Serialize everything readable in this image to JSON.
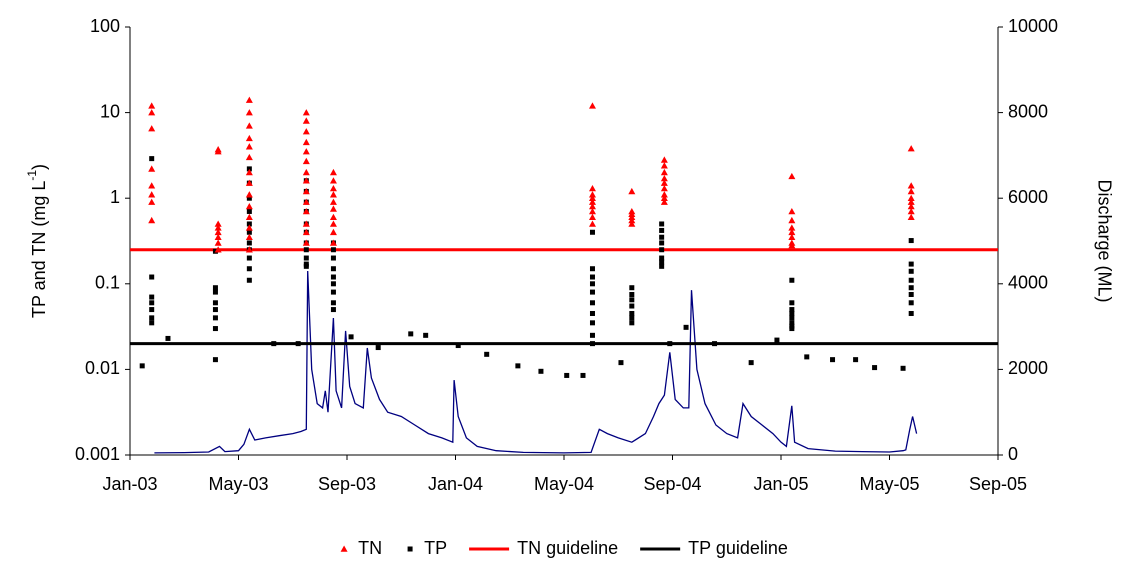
{
  "chart_data": {
    "type": "scatter",
    "ylog": true,
    "grid": false,
    "legend": "bottom",
    "ylabel": [
      "TP and TN (mg L",
      "-1",
      ")"
    ],
    "y2label": "Discharge (ML)",
    "xlim": [
      0,
      32
    ],
    "xticks": [
      {
        "value": 0,
        "label": "Jan-03"
      },
      {
        "value": 4,
        "label": "May-03"
      },
      {
        "value": 8,
        "label": "Sep-03"
      },
      {
        "value": 12,
        "label": "Jan-04"
      },
      {
        "value": 16,
        "label": "May-04"
      },
      {
        "value": 20,
        "label": "Sep-04"
      },
      {
        "value": 24,
        "label": "Jan-05"
      },
      {
        "value": 28,
        "label": "May-05"
      },
      {
        "value": 32,
        "label": "Sep-05"
      }
    ],
    "ylim": [
      0.001,
      100
    ],
    "yticks": [
      0.001,
      0.01,
      0.1,
      1,
      10,
      100
    ],
    "y2lim": [
      0,
      10000
    ],
    "y2ticks": [
      0,
      2000,
      4000,
      6000,
      8000,
      10000
    ],
    "series": [
      {
        "name": "TN",
        "color": "#ff0000",
        "marker": "triangle",
        "x": [
          0.8,
          0.8,
          0.8,
          0.8,
          0.8,
          0.8,
          0.8,
          0.8,
          3.25,
          3.25,
          3.25,
          3.25,
          3.25,
          3.25,
          3.25,
          3.25,
          4.4,
          4.4,
          4.4,
          4.4,
          4.4,
          4.4,
          4.4,
          4.4,
          4.4,
          4.4,
          4.4,
          4.4,
          4.4,
          4.4,
          6.5,
          6.5,
          6.5,
          6.5,
          6.5,
          6.5,
          6.5,
          6.5,
          6.5,
          6.5,
          6.5,
          6.5,
          6.5,
          6.5,
          7.5,
          7.5,
          7.5,
          7.5,
          7.5,
          7.5,
          7.5,
          7.5,
          7.5,
          7.5,
          17.05,
          17.05,
          17.05,
          17.05,
          17.05,
          17.05,
          17.05,
          17.05,
          17.05,
          18.5,
          18.5,
          18.5,
          18.5,
          18.5,
          18.5,
          19.7,
          19.7,
          19.7,
          19.7,
          19.7,
          19.7,
          19.7,
          19.7,
          19.7,
          24.4,
          24.4,
          24.4,
          24.4,
          24.4,
          24.4,
          24.4,
          24.4,
          28.8,
          28.8,
          28.8,
          28.8,
          28.8,
          28.8,
          28.8,
          28.8
        ],
        "values": [
          12,
          10,
          6.5,
          2.2,
          1.4,
          1.1,
          0.9,
          0.55,
          3.7,
          3.5,
          0.5,
          0.45,
          0.4,
          0.35,
          0.3,
          0.25,
          14,
          10,
          7,
          5,
          4,
          3,
          2,
          1.5,
          1.1,
          0.8,
          0.6,
          0.45,
          0.35,
          0.25,
          10,
          8,
          6,
          4.5,
          3.5,
          2.7,
          2,
          1.6,
          1.2,
          0.9,
          0.7,
          0.5,
          0.4,
          0.3,
          2,
          1.6,
          1.3,
          1.1,
          0.9,
          0.75,
          0.6,
          0.5,
          0.4,
          0.3,
          12,
          1.3,
          1.1,
          1.0,
          0.9,
          0.8,
          0.7,
          0.6,
          0.5,
          1.2,
          0.7,
          0.65,
          0.6,
          0.55,
          0.5,
          2.8,
          2.4,
          2,
          1.7,
          1.5,
          1.3,
          1.1,
          1.0,
          0.9,
          1.8,
          0.7,
          0.55,
          0.45,
          0.4,
          0.35,
          0.3,
          0.28,
          3.8,
          1.4,
          1.2,
          1.0,
          0.9,
          0.8,
          0.7,
          0.6
        ]
      },
      {
        "name": "TP",
        "color": "#000000",
        "marker": "square",
        "x": [
          0.45,
          0.8,
          0.8,
          0.8,
          0.8,
          0.8,
          0.8,
          0.8,
          1.4,
          3.15,
          3.15,
          3.15,
          3.15,
          3.15,
          3.15,
          3.15,
          3.15,
          4.4,
          4.4,
          4.4,
          4.4,
          4.4,
          4.4,
          4.4,
          4.4,
          4.4,
          4.4,
          4.4,
          5.3,
          6.2,
          6.5,
          6.5,
          6.5,
          6.5,
          6.5,
          6.5,
          6.5,
          6.5,
          6.5,
          6.5,
          6.5,
          7.5,
          7.5,
          7.5,
          7.5,
          7.5,
          7.5,
          7.5,
          7.5,
          7.5,
          8.15,
          9.15,
          10.35,
          10.9,
          12.1,
          13.15,
          14.3,
          15.15,
          16.1,
          16.7,
          17.05,
          17.05,
          17.05,
          17.05,
          17.05,
          17.05,
          17.05,
          17.05,
          17.05,
          17.05,
          18.1,
          18.5,
          18.5,
          18.5,
          18.5,
          18.5,
          18.5,
          18.5,
          19.6,
          19.6,
          19.6,
          19.6,
          19.6,
          19.6,
          19.6,
          19.6,
          19.9,
          20.5,
          21.55,
          22.9,
          23.85,
          24.4,
          24.4,
          24.4,
          24.4,
          24.4,
          24.4,
          24.4,
          24.4,
          24.95,
          25.9,
          26.75,
          27.45,
          28.5,
          28.8,
          28.8,
          28.8,
          28.8,
          28.8,
          28.8,
          28.8,
          28.8
        ],
        "values": [
          0.011,
          2.9,
          0.12,
          0.07,
          0.06,
          0.05,
          0.04,
          0.035,
          0.023,
          0.24,
          0.09,
          0.08,
          0.06,
          0.05,
          0.04,
          0.03,
          0.013,
          2.2,
          1.5,
          1.0,
          0.7,
          0.5,
          0.4,
          0.3,
          0.25,
          0.2,
          0.15,
          0.11,
          0.02,
          0.02,
          1.6,
          1.2,
          0.9,
          0.7,
          0.5,
          0.4,
          0.3,
          0.25,
          0.2,
          0.17,
          0.16,
          0.3,
          0.25,
          0.2,
          0.15,
          0.12,
          0.1,
          0.08,
          0.06,
          0.05,
          0.024,
          0.018,
          0.026,
          0.025,
          0.019,
          0.015,
          0.011,
          0.0095,
          0.0085,
          0.0085,
          0.4,
          0.15,
          0.12,
          0.1,
          0.08,
          0.06,
          0.045,
          0.035,
          0.025,
          0.02,
          0.012,
          0.09,
          0.075,
          0.065,
          0.055,
          0.045,
          0.04,
          0.035,
          0.5,
          0.42,
          0.35,
          0.3,
          0.25,
          0.2,
          0.18,
          0.16,
          0.02,
          0.031,
          0.02,
          0.012,
          0.022,
          0.11,
          0.06,
          0.05,
          0.045,
          0.04,
          0.035,
          0.032,
          0.03,
          0.014,
          0.013,
          0.013,
          0.0105,
          0.0103,
          0.32,
          0.17,
          0.14,
          0.11,
          0.09,
          0.075,
          0.06,
          0.045
        ]
      },
      {
        "name": "TN guideline",
        "color": "#ff0000",
        "marker": "hline",
        "value": 0.25
      },
      {
        "name": "TP guideline",
        "color": "#000000",
        "marker": "hline",
        "value": 0.02
      }
    ],
    "discharge": {
      "color": "#000080",
      "axis": "y2",
      "x": [
        0.9,
        2,
        2.9,
        3.3,
        3.5,
        4,
        4.2,
        4.4,
        4.6,
        5,
        5.5,
        6,
        6.3,
        6.5,
        6.55,
        6.7,
        6.9,
        7.1,
        7.2,
        7.3,
        7.5,
        7.6,
        7.8,
        7.95,
        8.1,
        8.3,
        8.6,
        8.75,
        8.9,
        9.2,
        9.5,
        10,
        10.5,
        11,
        11.5,
        11.9,
        11.95,
        12.1,
        12.4,
        12.8,
        13.5,
        14.5,
        16,
        17,
        17.3,
        17.6,
        18,
        18.5,
        19,
        19.3,
        19.5,
        19.7,
        19.9,
        20.1,
        20.4,
        20.6,
        20.7,
        20.9,
        21.2,
        21.6,
        22,
        22.4,
        22.6,
        22.9,
        23.3,
        23.7,
        24,
        24.2,
        24.4,
        24.5,
        25,
        26,
        27,
        28,
        28.5,
        28.6,
        28.75,
        28.85,
        29
      ],
      "values": [
        50,
        55,
        70,
        200,
        80,
        100,
        250,
        600,
        350,
        400,
        450,
        500,
        550,
        600,
        4300,
        2000,
        1200,
        1100,
        1500,
        1000,
        3200,
        1500,
        1100,
        2900,
        1600,
        1200,
        1100,
        2500,
        1800,
        1300,
        1000,
        900,
        700,
        500,
        400,
        300,
        1750,
        900,
        400,
        200,
        100,
        60,
        50,
        60,
        600,
        500,
        400,
        300,
        500,
        900,
        1200,
        1400,
        2400,
        1300,
        1100,
        1100,
        3850,
        2000,
        1200,
        700,
        500,
        400,
        1200,
        900,
        700,
        500,
        300,
        200,
        1150,
        300,
        150,
        90,
        80,
        70,
        100,
        120,
        600,
        900,
        500
      ]
    }
  }
}
